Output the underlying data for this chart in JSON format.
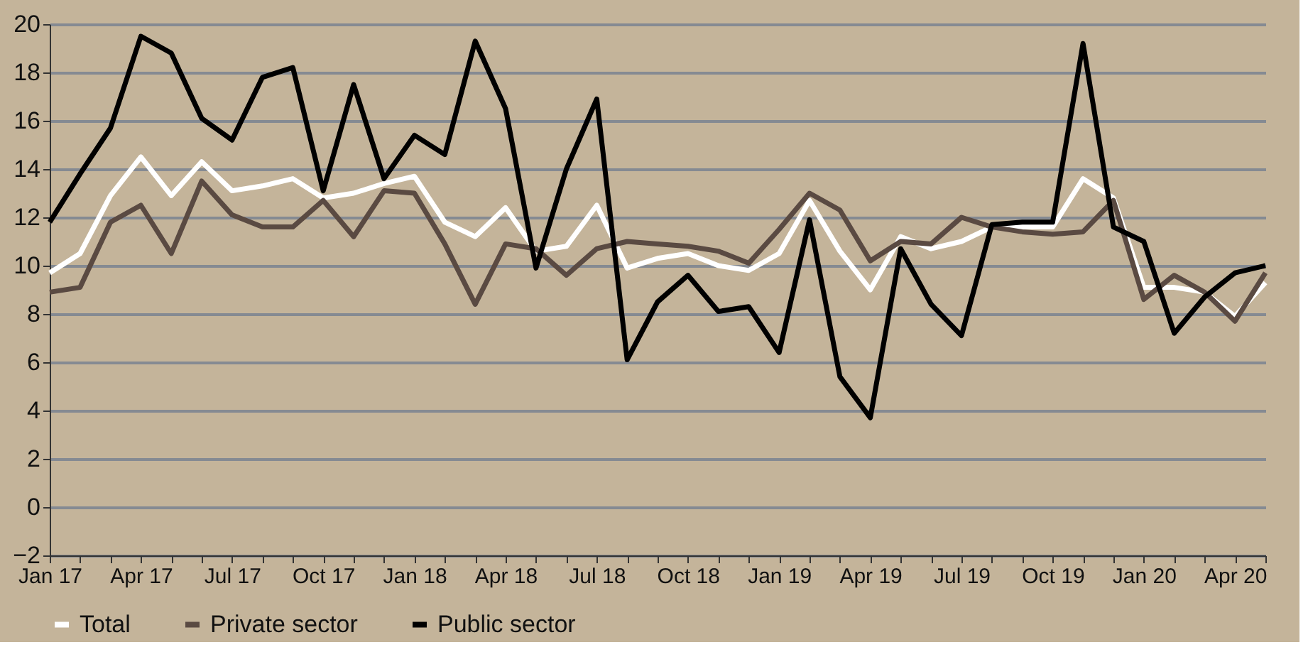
{
  "chart_data": {
    "type": "line",
    "categories": [
      "Jan 17",
      null,
      null,
      "Apr 17",
      null,
      null,
      "Jul 17",
      null,
      null,
      "Oct 17",
      null,
      null,
      "Jan 18",
      null,
      null,
      "Apr 18",
      null,
      null,
      "Jul 18",
      null,
      null,
      "Oct 18",
      null,
      null,
      "Jan 19",
      null,
      null,
      "Apr 19",
      null,
      null,
      "Jul 19",
      null,
      null,
      "Oct 19",
      null,
      null,
      "Jan 20",
      null,
      null,
      "Apr 20",
      null
    ],
    "series": [
      {
        "name": "Total",
        "color": "#ffffff",
        "values": [
          9.7,
          10.5,
          12.9,
          14.5,
          12.9,
          14.3,
          13.1,
          13.3,
          13.6,
          12.8,
          13.0,
          13.4,
          13.7,
          11.8,
          11.2,
          12.4,
          10.6,
          10.8,
          12.5,
          9.9,
          10.3,
          10.5,
          10.0,
          9.8,
          10.5,
          12.7,
          10.6,
          9.0,
          11.2,
          10.7,
          11.0,
          11.6,
          11.6,
          11.6,
          13.6,
          12.8,
          9.1,
          9.1,
          8.9,
          7.9,
          9.3
        ]
      },
      {
        "name": "Private sector",
        "color": "#5a4a42",
        "values": [
          8.9,
          9.1,
          11.8,
          12.5,
          10.5,
          13.5,
          12.1,
          11.6,
          11.6,
          12.7,
          11.2,
          13.1,
          13.0,
          10.9,
          8.4,
          10.9,
          10.7,
          9.6,
          10.7,
          11.0,
          10.9,
          10.8,
          10.6,
          10.1,
          11.5,
          13.0,
          12.3,
          10.2,
          11.0,
          10.9,
          12.0,
          11.6,
          11.4,
          11.3,
          11.4,
          12.7,
          8.6,
          9.6,
          8.9,
          7.7,
          9.7
        ]
      },
      {
        "name": "Public sector",
        "color": "#000000",
        "values": [
          11.8,
          13.8,
          15.7,
          19.5,
          18.8,
          16.1,
          15.2,
          17.8,
          18.2,
          13.1,
          17.5,
          13.6,
          15.4,
          14.6,
          19.3,
          16.5,
          9.9,
          14.0,
          16.9,
          6.1,
          8.5,
          9.6,
          8.1,
          8.3,
          6.4,
          11.9,
          5.4,
          3.7,
          10.7,
          8.4,
          7.1,
          11.7,
          11.8,
          11.8,
          19.2,
          11.6,
          11.0,
          7.2,
          8.7,
          9.7,
          10.0
        ]
      }
    ],
    "ylim": [
      -2,
      20
    ],
    "yticks": [
      -2,
      0,
      2,
      4,
      6,
      8,
      10,
      12,
      14,
      16,
      18,
      20
    ],
    "grid": "y",
    "legend": "bottom",
    "marker": "none",
    "line_style": "solid"
  }
}
